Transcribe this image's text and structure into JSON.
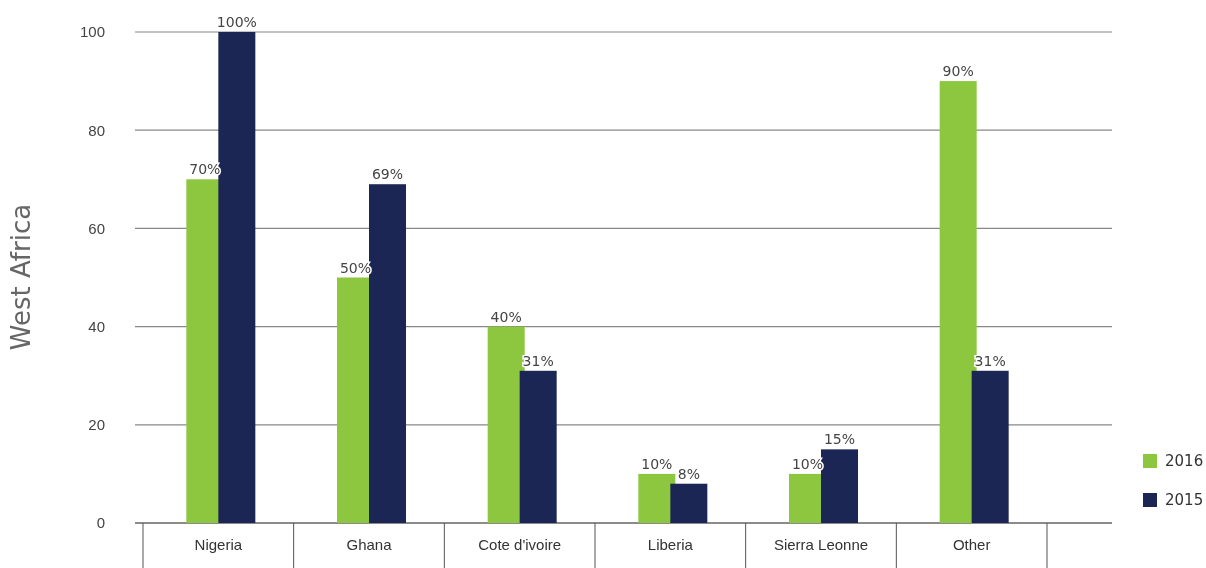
{
  "chart_data": {
    "type": "bar",
    "ylabel": "West Africa",
    "categories": [
      "Nigeria",
      "Ghana",
      "Cote d'ivoire",
      "Liberia",
      "Sierra Leonne",
      "Other"
    ],
    "series": [
      {
        "name": "2016",
        "color": "#8dc63f",
        "values": [
          70,
          50,
          40,
          10,
          10,
          90
        ],
        "value_labels": [
          "70%",
          "50%",
          "40%",
          "10%",
          "10%",
          "90%"
        ]
      },
      {
        "name": "2015",
        "color": "#1c2654",
        "values": [
          100,
          69,
          31,
          8,
          15,
          31
        ],
        "value_labels": [
          "100%",
          "69%",
          "31%",
          "8%",
          "15%",
          "31%"
        ]
      }
    ],
    "ylim": [
      0,
      100
    ],
    "yticks": [
      0,
      20,
      40,
      60,
      80,
      100
    ],
    "grid": "y",
    "legend": "bottom right"
  }
}
